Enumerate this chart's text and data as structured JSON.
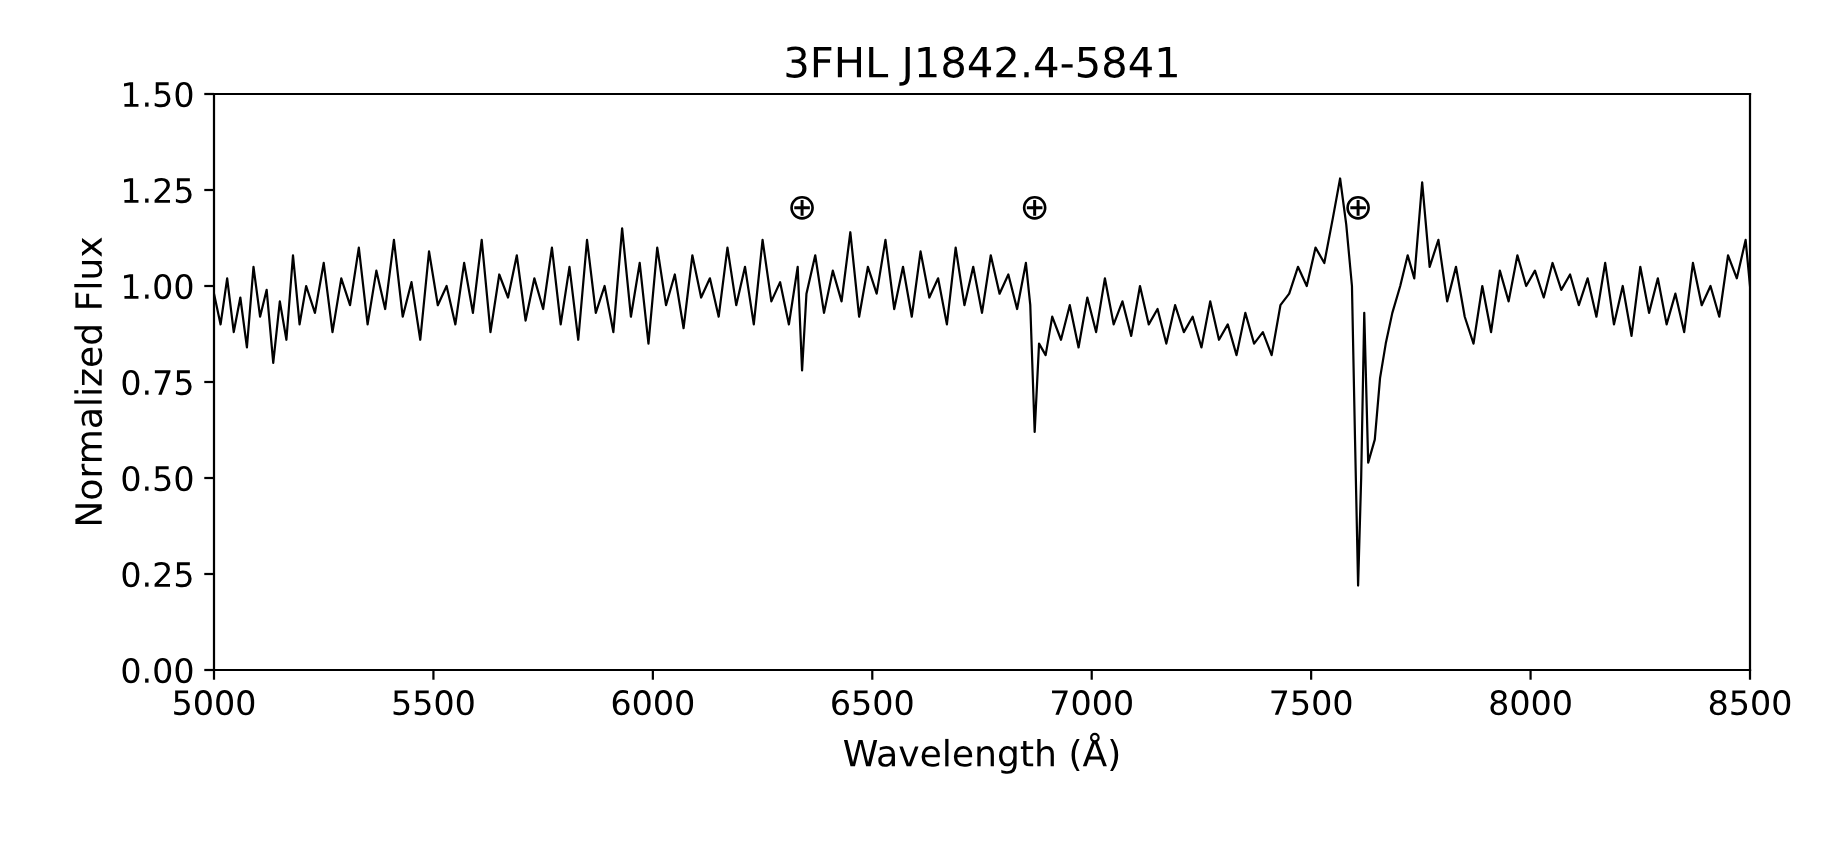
{
  "chart_data": {
    "type": "line",
    "title": "3FHL J1842.4-5841",
    "xlabel": "Wavelength (Å)",
    "ylabel": "Normalized Flux",
    "series": [
      {
        "color": "#000000",
        "x": [
          5000,
          5015,
          5030,
          5045,
          5060,
          5075,
          5090,
          5105,
          5120,
          5135,
          5150,
          5165,
          5180,
          5195,
          5210,
          5230,
          5250,
          5270,
          5290,
          5310,
          5330,
          5350,
          5370,
          5390,
          5410,
          5430,
          5450,
          5470,
          5490,
          5510,
          5530,
          5550,
          5570,
          5590,
          5610,
          5630,
          5650,
          5670,
          5690,
          5710,
          5730,
          5750,
          5770,
          5790,
          5810,
          5830,
          5850,
          5870,
          5890,
          5910,
          5930,
          5950,
          5970,
          5990,
          6010,
          6030,
          6050,
          6070,
          6090,
          6110,
          6130,
          6150,
          6170,
          6190,
          6210,
          6230,
          6250,
          6270,
          6290,
          6310,
          6330,
          6340,
          6350,
          6370,
          6390,
          6410,
          6430,
          6450,
          6470,
          6490,
          6510,
          6530,
          6550,
          6570,
          6590,
          6610,
          6630,
          6650,
          6670,
          6690,
          6710,
          6730,
          6750,
          6770,
          6790,
          6810,
          6830,
          6850,
          6860,
          6870,
          6880,
          6895,
          6910,
          6930,
          6950,
          6970,
          6990,
          7010,
          7030,
          7050,
          7070,
          7090,
          7110,
          7130,
          7150,
          7170,
          7190,
          7210,
          7230,
          7250,
          7270,
          7290,
          7310,
          7330,
          7350,
          7370,
          7390,
          7410,
          7430,
          7450,
          7470,
          7490,
          7510,
          7530,
          7550,
          7566,
          7580,
          7593,
          7600,
          7607,
          7614,
          7621,
          7630,
          7645,
          7657,
          7670,
          7685,
          7703,
          7720,
          7735,
          7753,
          7770,
          7790,
          7810,
          7830,
          7850,
          7870,
          7890,
          7910,
          7930,
          7950,
          7970,
          7990,
          8010,
          8030,
          8050,
          8070,
          8090,
          8110,
          8130,
          8150,
          8170,
          8190,
          8210,
          8230,
          8250,
          8270,
          8290,
          8310,
          8330,
          8350,
          8370,
          8390,
          8410,
          8430,
          8450,
          8470,
          8490,
          8500
        ],
        "values": [
          0.98,
          0.9,
          1.02,
          0.88,
          0.97,
          0.84,
          1.05,
          0.92,
          0.99,
          0.8,
          0.96,
          0.86,
          1.08,
          0.9,
          1.0,
          0.93,
          1.06,
          0.88,
          1.02,
          0.95,
          1.1,
          0.9,
          1.04,
          0.94,
          1.12,
          0.92,
          1.01,
          0.86,
          1.09,
          0.95,
          1.0,
          0.9,
          1.06,
          0.93,
          1.12,
          0.88,
          1.03,
          0.97,
          1.08,
          0.91,
          1.02,
          0.94,
          1.1,
          0.9,
          1.05,
          0.86,
          1.12,
          0.93,
          1.0,
          0.88,
          1.15,
          0.92,
          1.06,
          0.85,
          1.1,
          0.95,
          1.03,
          0.89,
          1.08,
          0.97,
          1.02,
          0.92,
          1.1,
          0.95,
          1.05,
          0.9,
          1.12,
          0.96,
          1.01,
          0.9,
          1.05,
          0.78,
          0.98,
          1.08,
          0.93,
          1.04,
          0.96,
          1.14,
          0.92,
          1.05,
          0.98,
          1.12,
          0.94,
          1.05,
          0.92,
          1.09,
          0.97,
          1.02,
          0.9,
          1.1,
          0.95,
          1.05,
          0.93,
          1.08,
          0.98,
          1.03,
          0.94,
          1.06,
          0.95,
          0.62,
          0.85,
          0.82,
          0.92,
          0.86,
          0.95,
          0.84,
          0.97,
          0.88,
          1.02,
          0.9,
          0.96,
          0.87,
          1.0,
          0.9,
          0.94,
          0.85,
          0.95,
          0.88,
          0.92,
          0.84,
          0.96,
          0.86,
          0.9,
          0.82,
          0.93,
          0.85,
          0.88,
          0.82,
          0.95,
          0.98,
          1.05,
          1.0,
          1.1,
          1.06,
          1.18,
          1.28,
          1.16,
          1.0,
          0.6,
          0.22,
          0.5,
          0.93,
          0.54,
          0.6,
          0.76,
          0.85,
          0.93,
          1.0,
          1.08,
          1.02,
          1.27,
          1.05,
          1.12,
          0.96,
          1.05,
          0.92,
          0.85,
          1.0,
          0.88,
          1.04,
          0.96,
          1.08,
          1.0,
          1.04,
          0.97,
          1.06,
          0.99,
          1.03,
          0.95,
          1.02,
          0.92,
          1.06,
          0.9,
          1.0,
          0.87,
          1.05,
          0.93,
          1.02,
          0.9,
          0.98,
          0.88,
          1.06,
          0.95,
          1.0,
          0.92,
          1.08,
          1.02,
          1.12,
          1.0
        ]
      }
    ],
    "xlim": [
      5000,
      8500
    ],
    "xticks": [
      5000,
      5500,
      6000,
      6500,
      7000,
      7500,
      8000,
      8500
    ],
    "ylim": [
      0.0,
      1.5
    ],
    "yticks": [
      {
        "value": 0.0,
        "label": "0.00"
      },
      {
        "value": 0.25,
        "label": "0.25"
      },
      {
        "value": 0.5,
        "label": "0.50"
      },
      {
        "value": 0.75,
        "label": "0.75"
      },
      {
        "value": 1.0,
        "label": "1.00"
      },
      {
        "value": 1.25,
        "label": "1.25"
      },
      {
        "value": 1.5,
        "label": "1.50"
      }
    ],
    "annotations": [
      "⊕",
      "⊕",
      "⊕"
    ],
    "grid": false,
    "legend": false,
    "marker": "none",
    "line_style": "solid"
  }
}
